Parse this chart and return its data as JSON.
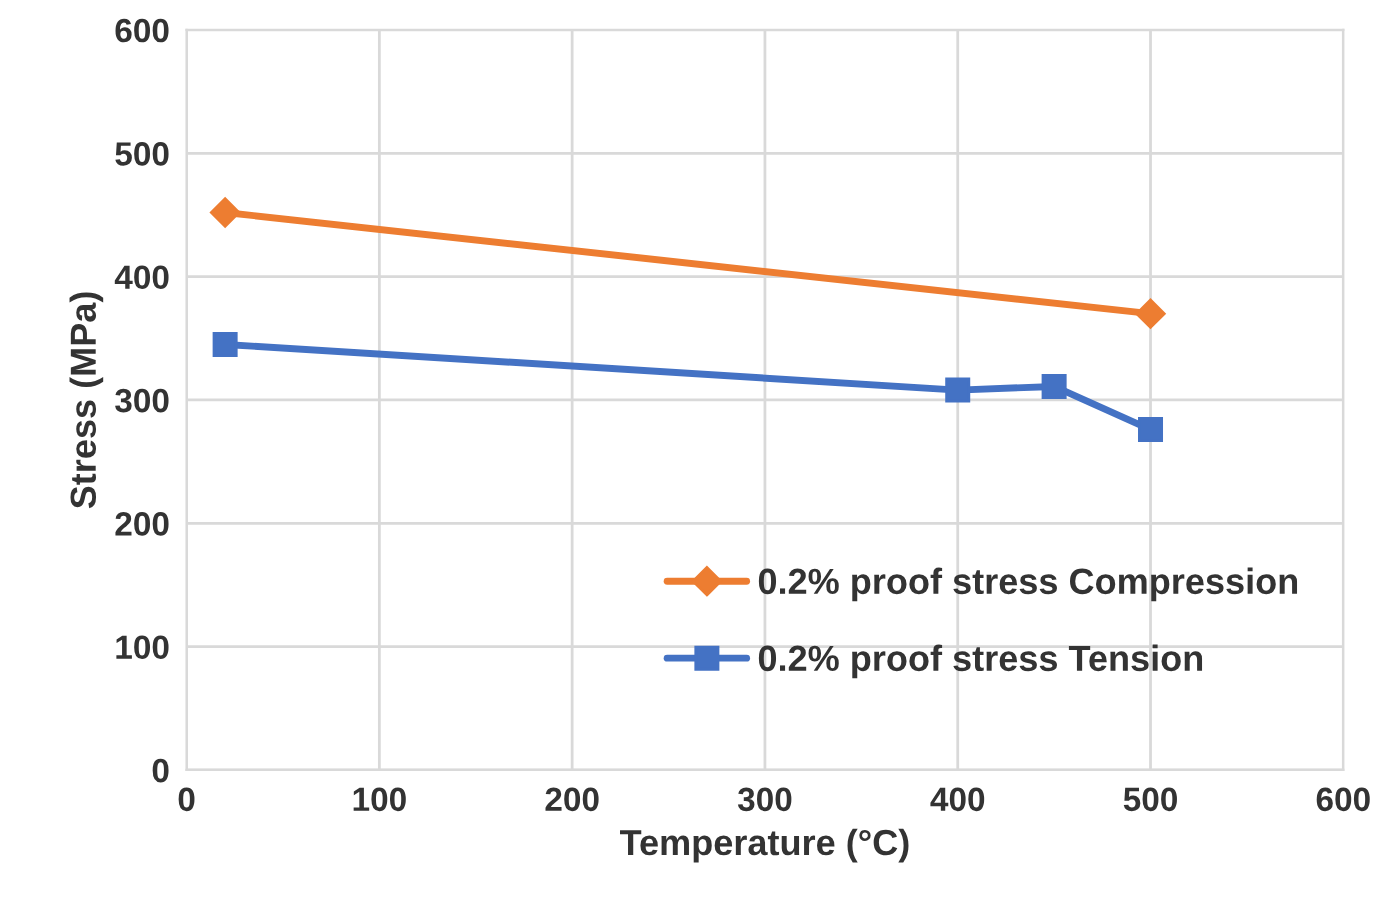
{
  "chart_data": {
    "type": "line",
    "xlabel": "Temperature (°C)",
    "ylabel": "Stress (MPa)",
    "xlim": [
      0,
      600
    ],
    "xticks": [
      0,
      100,
      200,
      300,
      400,
      500,
      600
    ],
    "ylim": [
      0,
      600
    ],
    "yticks": [
      0,
      100,
      200,
      300,
      400,
      500,
      600
    ],
    "grid": true,
    "legend": "bottom right",
    "series": [
      {
        "name": "0.2% proof stress Compression",
        "color": "#ed7d31",
        "marker": "diamond",
        "x": [
          20,
          500
        ],
        "values": [
          452,
          370
        ]
      },
      {
        "name": "0.2% proof stress Tension",
        "color": "#4472c4",
        "marker": "square",
        "x": [
          20,
          400,
          450,
          500
        ],
        "values": [
          345,
          308,
          311,
          276
        ]
      }
    ]
  }
}
